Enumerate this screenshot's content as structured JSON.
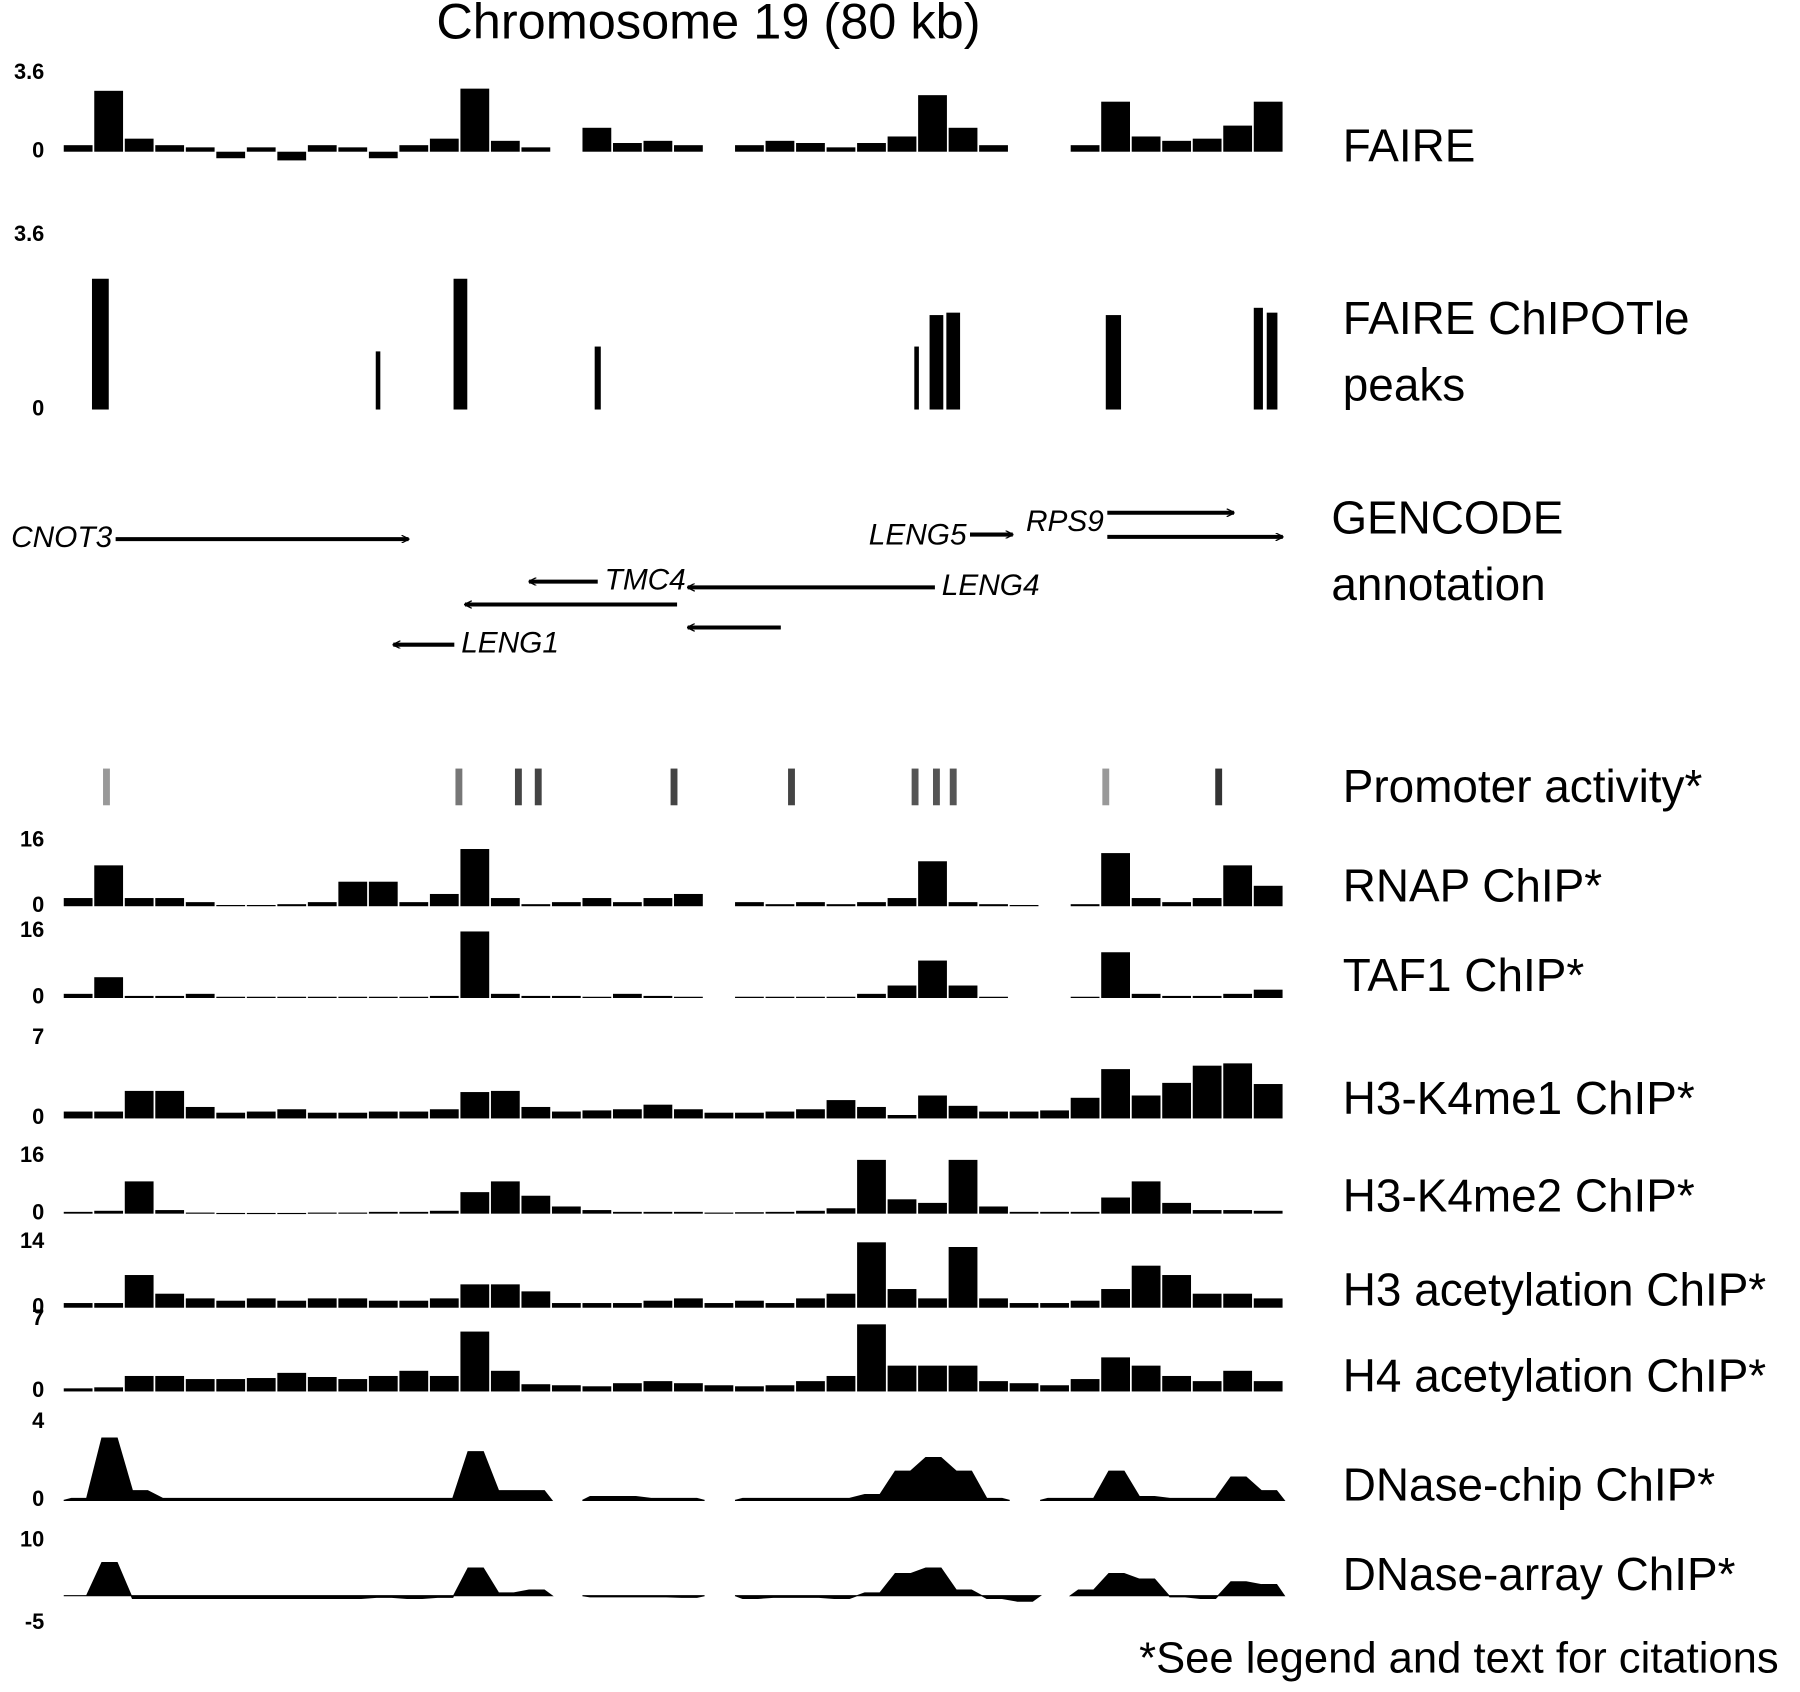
{
  "title": "Chromosome 19 (80 kb)",
  "footnote": "*See legend and text for citations",
  "chart_data": [
    {
      "type": "histogram",
      "label": "FAIRE",
      "ylim": [
        -1.2,
        3.6
      ],
      "yticks": [
        0,
        3.6
      ],
      "color": "#000000",
      "bins": [
        0,
        2,
        4,
        6,
        8,
        10,
        12,
        14,
        16,
        18,
        20,
        22,
        24,
        26,
        28,
        30,
        32,
        34,
        36,
        38,
        40,
        42,
        44,
        46,
        48,
        50,
        52,
        54,
        56,
        58,
        60,
        62,
        64,
        66,
        68,
        70,
        72,
        74,
        76,
        78,
        80
      ],
      "values": [
        0.3,
        2.8,
        0.6,
        0.3,
        0.2,
        -0.3,
        0.2,
        -0.4,
        0.3,
        0.2,
        -0.3,
        0.3,
        0.6,
        2.9,
        0.5,
        0.2,
        null,
        1.1,
        0.4,
        0.5,
        0.3,
        null,
        0.3,
        0.5,
        0.4,
        0.2,
        0.4,
        0.7,
        2.6,
        1.1,
        0.3,
        null,
        null,
        0.3,
        2.3,
        0.7,
        0.5,
        0.6,
        1.2,
        2.3
      ]
    },
    {
      "type": "peaks",
      "label": "FAIRE ChIPOTle peaks",
      "ylim": [
        0,
        3.6
      ],
      "yticks": [
        0,
        3.6
      ],
      "color": "#000000",
      "x": [
        2.4,
        20.6,
        26.0,
        35.0,
        55.9,
        57.2,
        58.3,
        68.8,
        78.3,
        79.2
      ],
      "widths": [
        1.1,
        0.3,
        0.9,
        0.4,
        0.3,
        0.9,
        0.9,
        1.0,
        0.6,
        0.7
      ],
      "values": [
        2.7,
        1.2,
        2.7,
        1.3,
        1.3,
        1.95,
        2.0,
        1.95,
        2.1,
        2.0
      ]
    },
    {
      "type": "annotation",
      "label": "GENCODE annotation",
      "genes": [
        {
          "name": "CNOT3",
          "start": 3.4,
          "end": 22.6
        },
        {
          "name": "TMC4",
          "start": 35.0,
          "end": 30.5
        },
        {
          "name": "LENG4",
          "start": 57.1,
          "end": 40.9
        },
        {
          "name": null,
          "start": 40.2,
          "end": 26.3
        },
        {
          "name": "LENG1",
          "start": 25.6,
          "end": 21.6
        },
        {
          "name": null,
          "start": 47.0,
          "end": 40.9
        },
        {
          "name": "LENG5",
          "start": 59.4,
          "end": 62.2
        },
        {
          "name": "RPS9",
          "start": 68.4,
          "end": 76.7
        },
        {
          "name": null,
          "start": 68.4,
          "end": 79.9
        }
      ]
    },
    {
      "type": "ticks",
      "label": "Promoter activity*",
      "x": [
        2.8,
        25.9,
        29.8,
        31.1,
        40.0,
        47.7,
        55.8,
        57.2,
        58.3,
        68.3,
        75.7
      ],
      "colors": [
        "#999999",
        "#777777",
        "#444444",
        "#444444",
        "#444444",
        "#444444",
        "#555555",
        "#555555",
        "#555555",
        "#999999",
        "#333333"
      ]
    },
    {
      "type": "histogram",
      "label": "RNAP ChIP*",
      "ylim": [
        0,
        16
      ],
      "yticks": [
        0,
        16
      ],
      "color": "#000000",
      "bins": [
        0,
        2,
        4,
        6,
        8,
        10,
        12,
        14,
        16,
        18,
        20,
        22,
        24,
        26,
        28,
        30,
        32,
        34,
        36,
        38,
        40,
        42,
        44,
        46,
        48,
        50,
        52,
        54,
        56,
        58,
        60,
        62,
        64,
        66,
        68,
        70,
        72,
        74,
        76,
        78,
        80
      ],
      "values": [
        2,
        10,
        2,
        2,
        1,
        0.3,
        0.3,
        0.5,
        1,
        6,
        6,
        1,
        3,
        14,
        2,
        0.5,
        1,
        2,
        1,
        2,
        3,
        null,
        1,
        0.5,
        1,
        0.5,
        1,
        2,
        11,
        1,
        0.5,
        0.3,
        null,
        0.5,
        13,
        2,
        1,
        2,
        10,
        5
      ]
    },
    {
      "type": "histogram",
      "label": "TAF1 ChIP*",
      "ylim": [
        0,
        16
      ],
      "yticks": [
        0,
        16
      ],
      "color": "#000000",
      "bins": [
        0,
        2,
        4,
        6,
        8,
        10,
        12,
        14,
        16,
        18,
        20,
        22,
        24,
        26,
        28,
        30,
        32,
        34,
        36,
        38,
        40,
        42,
        44,
        46,
        48,
        50,
        52,
        54,
        56,
        58,
        60,
        62,
        64,
        66,
        68,
        70,
        72,
        74,
        76,
        78,
        80
      ],
      "values": [
        1,
        5,
        0.5,
        0.5,
        1,
        0.3,
        0.3,
        0.3,
        0.3,
        0.3,
        0.3,
        0.3,
        0.5,
        16,
        1,
        0.5,
        0.5,
        0.3,
        1,
        0.5,
        0.3,
        null,
        0.3,
        0.3,
        0.3,
        0.3,
        1,
        3,
        9,
        3,
        0.3,
        null,
        null,
        0.3,
        11,
        1,
        0.5,
        0.5,
        1,
        2
      ]
    },
    {
      "type": "histogram",
      "label": "H3-K4me1 ChIP*",
      "ylim": [
        0,
        7
      ],
      "yticks": [
        0,
        7
      ],
      "color": "#000000",
      "bins": [
        0,
        2,
        4,
        6,
        8,
        10,
        12,
        14,
        16,
        18,
        20,
        22,
        24,
        26,
        28,
        30,
        32,
        34,
        36,
        38,
        40,
        42,
        44,
        46,
        48,
        50,
        52,
        54,
        56,
        58,
        60,
        62,
        64,
        66,
        68,
        70,
        72,
        74,
        76,
        78,
        80
      ],
      "values": [
        0.6,
        0.6,
        2.4,
        2.4,
        1,
        0.5,
        0.6,
        0.8,
        0.5,
        0.5,
        0.6,
        0.6,
        0.8,
        2.3,
        2.4,
        1,
        0.6,
        0.7,
        0.8,
        1.2,
        0.8,
        0.5,
        0.5,
        0.6,
        0.8,
        1.6,
        1,
        0.3,
        2,
        1.1,
        0.6,
        0.6,
        0.7,
        1.8,
        4.3,
        2,
        3.1,
        4.6,
        4.8,
        3
      ]
    },
    {
      "type": "histogram",
      "label": "H3-K4me2 ChIP*",
      "ylim": [
        0,
        16
      ],
      "yticks": [
        0,
        16
      ],
      "color": "#000000",
      "bins": [
        0,
        2,
        4,
        6,
        8,
        10,
        12,
        14,
        16,
        18,
        20,
        22,
        24,
        26,
        28,
        30,
        32,
        34,
        36,
        38,
        40,
        42,
        44,
        46,
        48,
        50,
        52,
        54,
        56,
        58,
        60,
        62,
        64,
        66,
        68,
        70,
        72,
        74,
        76,
        78,
        80
      ],
      "values": [
        0.5,
        0.8,
        9,
        1,
        0.3,
        0.2,
        0.2,
        0.2,
        0.3,
        0.3,
        0.5,
        0.5,
        0.8,
        6,
        9,
        5,
        2,
        1,
        0.5,
        0.5,
        0.5,
        0.3,
        0.4,
        0.5,
        0.8,
        1.5,
        15,
        4,
        3,
        15,
        2,
        0.5,
        0.5,
        0.5,
        4.5,
        9,
        3,
        1,
        1,
        0.8
      ]
    },
    {
      "type": "histogram",
      "label": "H3 acetylation ChIP*",
      "ylim": [
        0,
        14
      ],
      "yticks": [
        0,
        14
      ],
      "color": "#000000",
      "bins": [
        0,
        2,
        4,
        6,
        8,
        10,
        12,
        14,
        16,
        18,
        20,
        22,
        24,
        26,
        28,
        30,
        32,
        34,
        36,
        38,
        40,
        42,
        44,
        46,
        48,
        50,
        52,
        54,
        56,
        58,
        60,
        62,
        64,
        66,
        68,
        70,
        72,
        74,
        76,
        78,
        80
      ],
      "values": [
        1,
        1,
        7,
        3,
        2,
        1.5,
        2,
        1.5,
        2,
        2,
        1.5,
        1.5,
        2,
        5,
        5,
        3.5,
        1,
        1,
        1,
        1.5,
        2,
        1,
        1.5,
        1,
        2,
        3,
        14,
        4,
        2,
        13,
        2,
        1,
        1,
        1.5,
        4,
        9,
        7,
        3,
        3,
        2
      ]
    },
    {
      "type": "histogram",
      "label": "H4 acetylation ChIP*",
      "ylim": [
        0,
        7
      ],
      "yticks": [
        0,
        7
      ],
      "color": "#000000",
      "bins": [
        0,
        2,
        4,
        6,
        8,
        10,
        12,
        14,
        16,
        18,
        20,
        22,
        24,
        26,
        28,
        30,
        32,
        34,
        36,
        38,
        40,
        42,
        44,
        46,
        48,
        50,
        52,
        54,
        56,
        58,
        60,
        62,
        64,
        66,
        68,
        70,
        72,
        74,
        76,
        78,
        80
      ],
      "values": [
        0.3,
        0.4,
        1.5,
        1.5,
        1.2,
        1.2,
        1.3,
        1.8,
        1.4,
        1.2,
        1.5,
        2,
        1.5,
        5.8,
        2,
        0.7,
        0.6,
        0.5,
        0.8,
        1,
        0.8,
        0.6,
        0.5,
        0.6,
        1,
        1.5,
        6.5,
        2.5,
        2.5,
        2.5,
        1,
        0.8,
        0.6,
        1.2,
        3.3,
        2.5,
        1.5,
        1,
        2,
        1
      ]
    },
    {
      "type": "area",
      "label": "DNase-chip ChIP*",
      "ylim": [
        0,
        4
      ],
      "yticks": [
        0,
        4
      ],
      "color": "#000000",
      "x": [
        1,
        3,
        5,
        7,
        9,
        11,
        13,
        15,
        17,
        19,
        21,
        23,
        25,
        27,
        29,
        31,
        33,
        35,
        37,
        39,
        41,
        43,
        45,
        47,
        49,
        51,
        53,
        55,
        57,
        59,
        61,
        63,
        65,
        67,
        69,
        71,
        73,
        75,
        77,
        79
      ],
      "values": [
        0.1,
        3.2,
        0.5,
        0.1,
        0.1,
        0.1,
        0.1,
        0.1,
        0.1,
        0.1,
        0.1,
        0.1,
        0.1,
        2.5,
        0.5,
        0.5,
        null,
        0.2,
        0.2,
        0.1,
        0.1,
        null,
        0.1,
        0.1,
        0.1,
        0.1,
        0.3,
        1.5,
        2.2,
        1.5,
        0.1,
        null,
        0.1,
        0.1,
        1.5,
        0.2,
        0.1,
        0.1,
        1.2,
        0.5
      ]
    },
    {
      "type": "area",
      "label": "DNase-array ChIP*",
      "ylim": [
        -5,
        10
      ],
      "yticks": [
        10,
        -5
      ],
      "color": "#000000",
      "x": [
        1,
        3,
        5,
        7,
        9,
        11,
        13,
        15,
        17,
        19,
        21,
        23,
        25,
        27,
        29,
        31,
        33,
        35,
        37,
        39,
        41,
        43,
        45,
        47,
        49,
        51,
        53,
        55,
        57,
        59,
        61,
        63,
        65,
        67,
        69,
        71,
        73,
        75,
        77,
        79
      ],
      "values": [
        0,
        6,
        -0.5,
        -0.5,
        -0.5,
        -0.5,
        -0.5,
        -0.5,
        -0.5,
        -0.5,
        -0.3,
        -0.5,
        -0.3,
        5,
        0.5,
        1,
        null,
        -0.2,
        -0.2,
        -0.2,
        -0.3,
        null,
        -0.5,
        -0.3,
        -0.3,
        -0.5,
        0.5,
        4,
        5,
        1,
        -0.5,
        -1,
        null,
        1,
        4,
        3,
        -0.2,
        -0.5,
        2.5,
        2
      ]
    }
  ]
}
